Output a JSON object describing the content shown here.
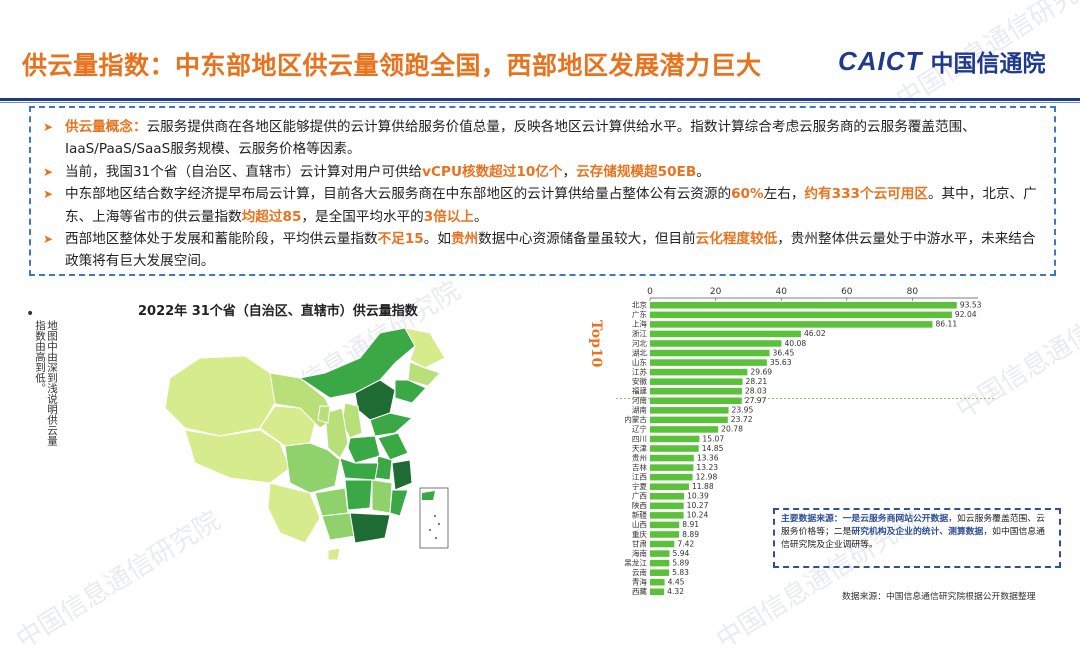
{
  "header": {
    "title": "供云量指数：中东部地区供云量领跑全国，西部地区发展潜力巨大",
    "logo_en": "CAICT",
    "logo_cn": "中国信通院",
    "watermark": "中国信息通信研究院"
  },
  "bullets": [
    {
      "parts": [
        {
          "t": "供云量概念：",
          "hl": true
        },
        {
          "t": "云服务提供商在各地区能够提供的云计算供给服务价值总量，反映各地区云计算供给水平。指数计算综合考虑云服务商的云服务覆盖范围、IaaS/PaaS/SaaS服务规模、云服务价格等因素。",
          "hl": false
        }
      ]
    },
    {
      "parts": [
        {
          "t": "当前，我国31个省（自治区、直辖市）云计算对用户可供给",
          "hl": false
        },
        {
          "t": "vCPU核数超过10亿个",
          "hl": true
        },
        {
          "t": "，",
          "hl": false
        },
        {
          "t": "云存储规模超50EB",
          "hl": true
        },
        {
          "t": "。",
          "hl": false
        }
      ]
    },
    {
      "parts": [
        {
          "t": "中东部地区结合数字经济提早布局云计算，目前各大云服务商在中东部地区的云计算供给量占整体公有云资源的",
          "hl": false
        },
        {
          "t": "60%",
          "hl": true
        },
        {
          "t": "左右，",
          "hl": false
        },
        {
          "t": "约有333个云可用区",
          "hl": true
        },
        {
          "t": "。其中，北京、广东、上海等省市的供云量指数",
          "hl": false
        },
        {
          "t": "均超过85",
          "hl": true
        },
        {
          "t": "，是全国平均水平的",
          "hl": false
        },
        {
          "t": "3倍以上",
          "hl": true
        },
        {
          "t": "。",
          "hl": false
        }
      ]
    },
    {
      "parts": [
        {
          "t": "西部地区整体处于发展和蓄能阶段，平均供云量指数",
          "hl": false
        },
        {
          "t": "不足15",
          "hl": true
        },
        {
          "t": "。如",
          "hl": false
        },
        {
          "t": "贵州",
          "hl": true
        },
        {
          "t": "数据中心资源储备量虽较大，但目前",
          "hl": false
        },
        {
          "t": "云化程度较低",
          "hl": true
        },
        {
          "t": "，贵州整体供云量处于中游水平，未来结合政策将有巨大发展空间。",
          "hl": false
        }
      ]
    }
  ],
  "map": {
    "title": "2022年 31个省（自治区、直辖市）供云量指数",
    "note": "地图中由深到浅说明供云量指数由高到低。",
    "colors": {
      "dark": "#1e6b33",
      "mid": "#3aa845",
      "light": "#8fd16a",
      "pale": "#d6ec8c"
    }
  },
  "chart_data": {
    "type": "bar",
    "orientation": "horizontal",
    "categories": [
      "北京",
      "广东",
      "上海",
      "浙江",
      "河北",
      "湖北",
      "山东",
      "江苏",
      "安徽",
      "福建",
      "河南",
      "湖南",
      "内蒙古",
      "辽宁",
      "四川",
      "天津",
      "贵州",
      "吉林",
      "江西",
      "宁夏",
      "广西",
      "陕西",
      "新疆",
      "山西",
      "重庆",
      "甘肃",
      "海南",
      "黑龙江",
      "云南",
      "青海",
      "西藏"
    ],
    "values": [
      93.53,
      92.04,
      86.11,
      46.02,
      40.08,
      36.45,
      35.63,
      29.69,
      28.21,
      28.03,
      27.97,
      23.95,
      23.72,
      20.78,
      15.07,
      14.85,
      13.36,
      13.23,
      12.98,
      11.88,
      10.39,
      10.27,
      10.24,
      8.91,
      8.89,
      7.42,
      5.94,
      5.89,
      5.83,
      4.45,
      4.32
    ],
    "xticks": [
      0,
      20,
      40,
      60,
      80
    ],
    "xlim": [
      0,
      100
    ],
    "top_label": "Top10",
    "bar_color": "#5cc13a"
  },
  "source_box": {
    "parts": [
      {
        "t": "主要数据来源：",
        "hl": true
      },
      {
        "t": "一是云服务商网站公开数据",
        "hl": true
      },
      {
        "t": "，如云服务覆盖范围、云服务价格等；二是",
        "hl": false
      },
      {
        "t": "研究机构及企业的统计、测算数据",
        "hl": true
      },
      {
        "t": "，如中国信息通信研究院及企业调研等。",
        "hl": false
      }
    ]
  },
  "footer": "数据来源：中国信息通信研究院根据公开数据整理"
}
